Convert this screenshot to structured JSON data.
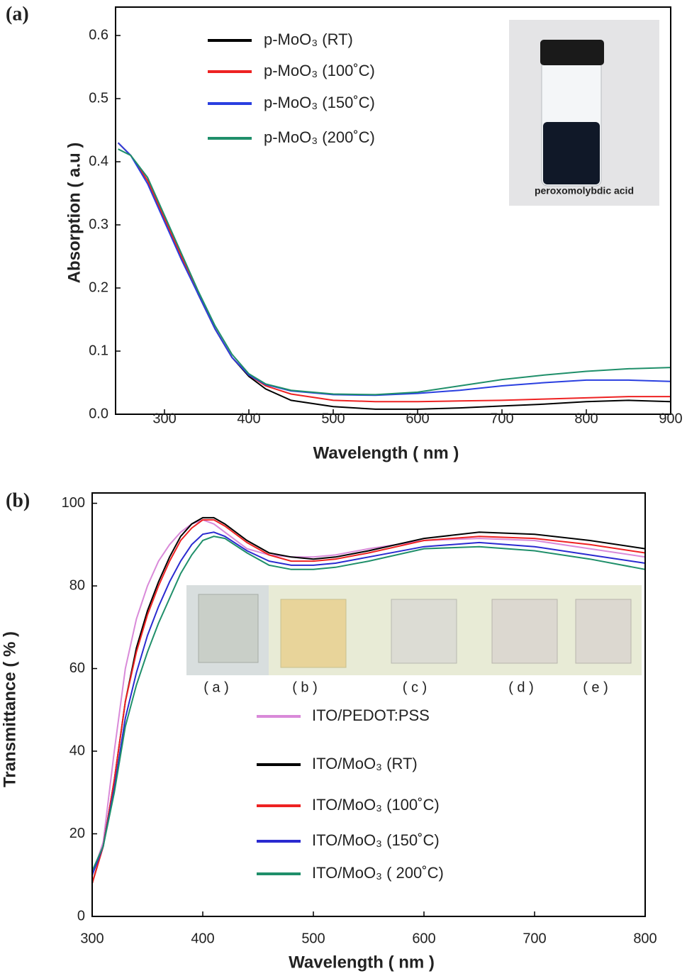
{
  "chart_data": [
    {
      "type": "line",
      "panel_label": "(a)",
      "x_label": "Wavelength ( nm )",
      "y_label": "Absorption ( a.u )",
      "inset_caption": "peroxomolybdic acid",
      "x": [
        245,
        260,
        280,
        300,
        320,
        340,
        360,
        380,
        400,
        420,
        450,
        500,
        550,
        600,
        650,
        700,
        750,
        800,
        850,
        900
      ],
      "series": [
        {
          "name": "p-MoO₃   (RT)",
          "color": "#000000",
          "values": [
            0.43,
            0.41,
            0.37,
            0.31,
            0.25,
            0.19,
            0.135,
            0.09,
            0.06,
            0.04,
            0.022,
            0.012,
            0.008,
            0.008,
            0.01,
            0.013,
            0.016,
            0.02,
            0.022,
            0.02
          ]
        },
        {
          "name": "p-MoO₃ (100˚C)",
          "color": "#ee2222",
          "values": [
            0.43,
            0.41,
            0.37,
            0.31,
            0.25,
            0.19,
            0.135,
            0.09,
            0.062,
            0.045,
            0.032,
            0.022,
            0.02,
            0.02,
            0.021,
            0.022,
            0.024,
            0.026,
            0.028,
            0.028
          ]
        },
        {
          "name": "p-MoO₃ (150˚C)",
          "color": "#2a3fe0",
          "values": [
            0.43,
            0.41,
            0.365,
            0.305,
            0.245,
            0.19,
            0.135,
            0.09,
            0.062,
            0.047,
            0.037,
            0.031,
            0.03,
            0.033,
            0.038,
            0.045,
            0.05,
            0.054,
            0.054,
            0.052
          ]
        },
        {
          "name": "p-MoO₃ (200˚C)",
          "color": "#1f8f6a",
          "values": [
            0.42,
            0.41,
            0.375,
            0.315,
            0.255,
            0.195,
            0.14,
            0.095,
            0.064,
            0.048,
            0.038,
            0.032,
            0.031,
            0.035,
            0.045,
            0.055,
            0.062,
            0.068,
            0.072,
            0.074
          ]
        }
      ],
      "xlim": [
        242,
        900
      ],
      "xticks": [
        300,
        400,
        500,
        600,
        700,
        800,
        900
      ],
      "ylim": [
        0,
        0.645
      ],
      "yticks": [
        {
          "value": 0,
          "label": "0.0"
        },
        0.1,
        0.2,
        0.3,
        0.4,
        0.5,
        0.6
      ]
    },
    {
      "type": "line",
      "panel_label": "(b)",
      "x_label": "Wavelength ( nm )",
      "y_label": "Transmittance ( % )",
      "inset_labels": [
        "( a )",
        "( b )",
        "( c )",
        "( d )",
        "( e )"
      ],
      "x": [
        300,
        310,
        320,
        330,
        340,
        350,
        360,
        370,
        380,
        390,
        400,
        410,
        420,
        440,
        460,
        480,
        500,
        520,
        550,
        600,
        650,
        700,
        750,
        800
      ],
      "series": [
        {
          "name": "ITO/PEDOT:PSS",
          "color": "#d98ad9",
          "values": [
            10,
            18,
            40,
            60,
            72,
            80,
            86,
            90,
            93,
            95,
            96,
            95,
            93,
            89,
            87.5,
            87,
            87,
            87.5,
            89,
            91,
            91.5,
            91,
            89,
            87
          ]
        },
        {
          "name": "ITO/MoO₃  (RT)",
          "color": "#000000",
          "values": [
            8,
            17,
            33,
            52,
            65,
            74,
            81,
            87,
            92,
            95,
            96.5,
            96.5,
            95,
            91,
            88,
            87,
            86.5,
            87,
            88.5,
            91.5,
            93,
            92.5,
            91,
            89
          ]
        },
        {
          "name": "ITO/MoO₃  (100˚C)",
          "color": "#ee2222",
          "values": [
            8,
            17,
            33,
            52,
            64,
            73,
            80,
            86,
            91,
            94,
            96,
            96,
            94.5,
            90.5,
            87.5,
            86,
            86,
            86.5,
            88,
            91,
            92,
            91.5,
            90,
            88
          ]
        },
        {
          "name": "ITO/MoO₃  (150˚C)",
          "color": "#2a2ad0",
          "values": [
            10,
            17,
            31,
            48,
            59,
            68,
            75,
            81,
            86,
            90,
            92.5,
            93,
            92,
            88.5,
            86,
            85,
            85,
            85.5,
            87,
            89.5,
            90.5,
            89.5,
            87.5,
            85.5
          ]
        },
        {
          "name": "ITO/MoO₃  ( 200˚C)",
          "color": "#1f8f6a",
          "values": [
            11,
            17,
            30,
            46,
            56,
            64,
            71,
            77,
            83,
            87.5,
            91,
            92,
            91.5,
            88,
            85,
            84,
            84,
            84.5,
            86,
            89,
            89.5,
            88.5,
            86.5,
            84
          ]
        }
      ],
      "xlim": [
        300,
        800
      ],
      "xticks": [
        300,
        400,
        500,
        600,
        700,
        800
      ],
      "ylim": [
        0,
        102.5
      ],
      "yticks": [
        0,
        20,
        40,
        60,
        80,
        100
      ]
    }
  ]
}
